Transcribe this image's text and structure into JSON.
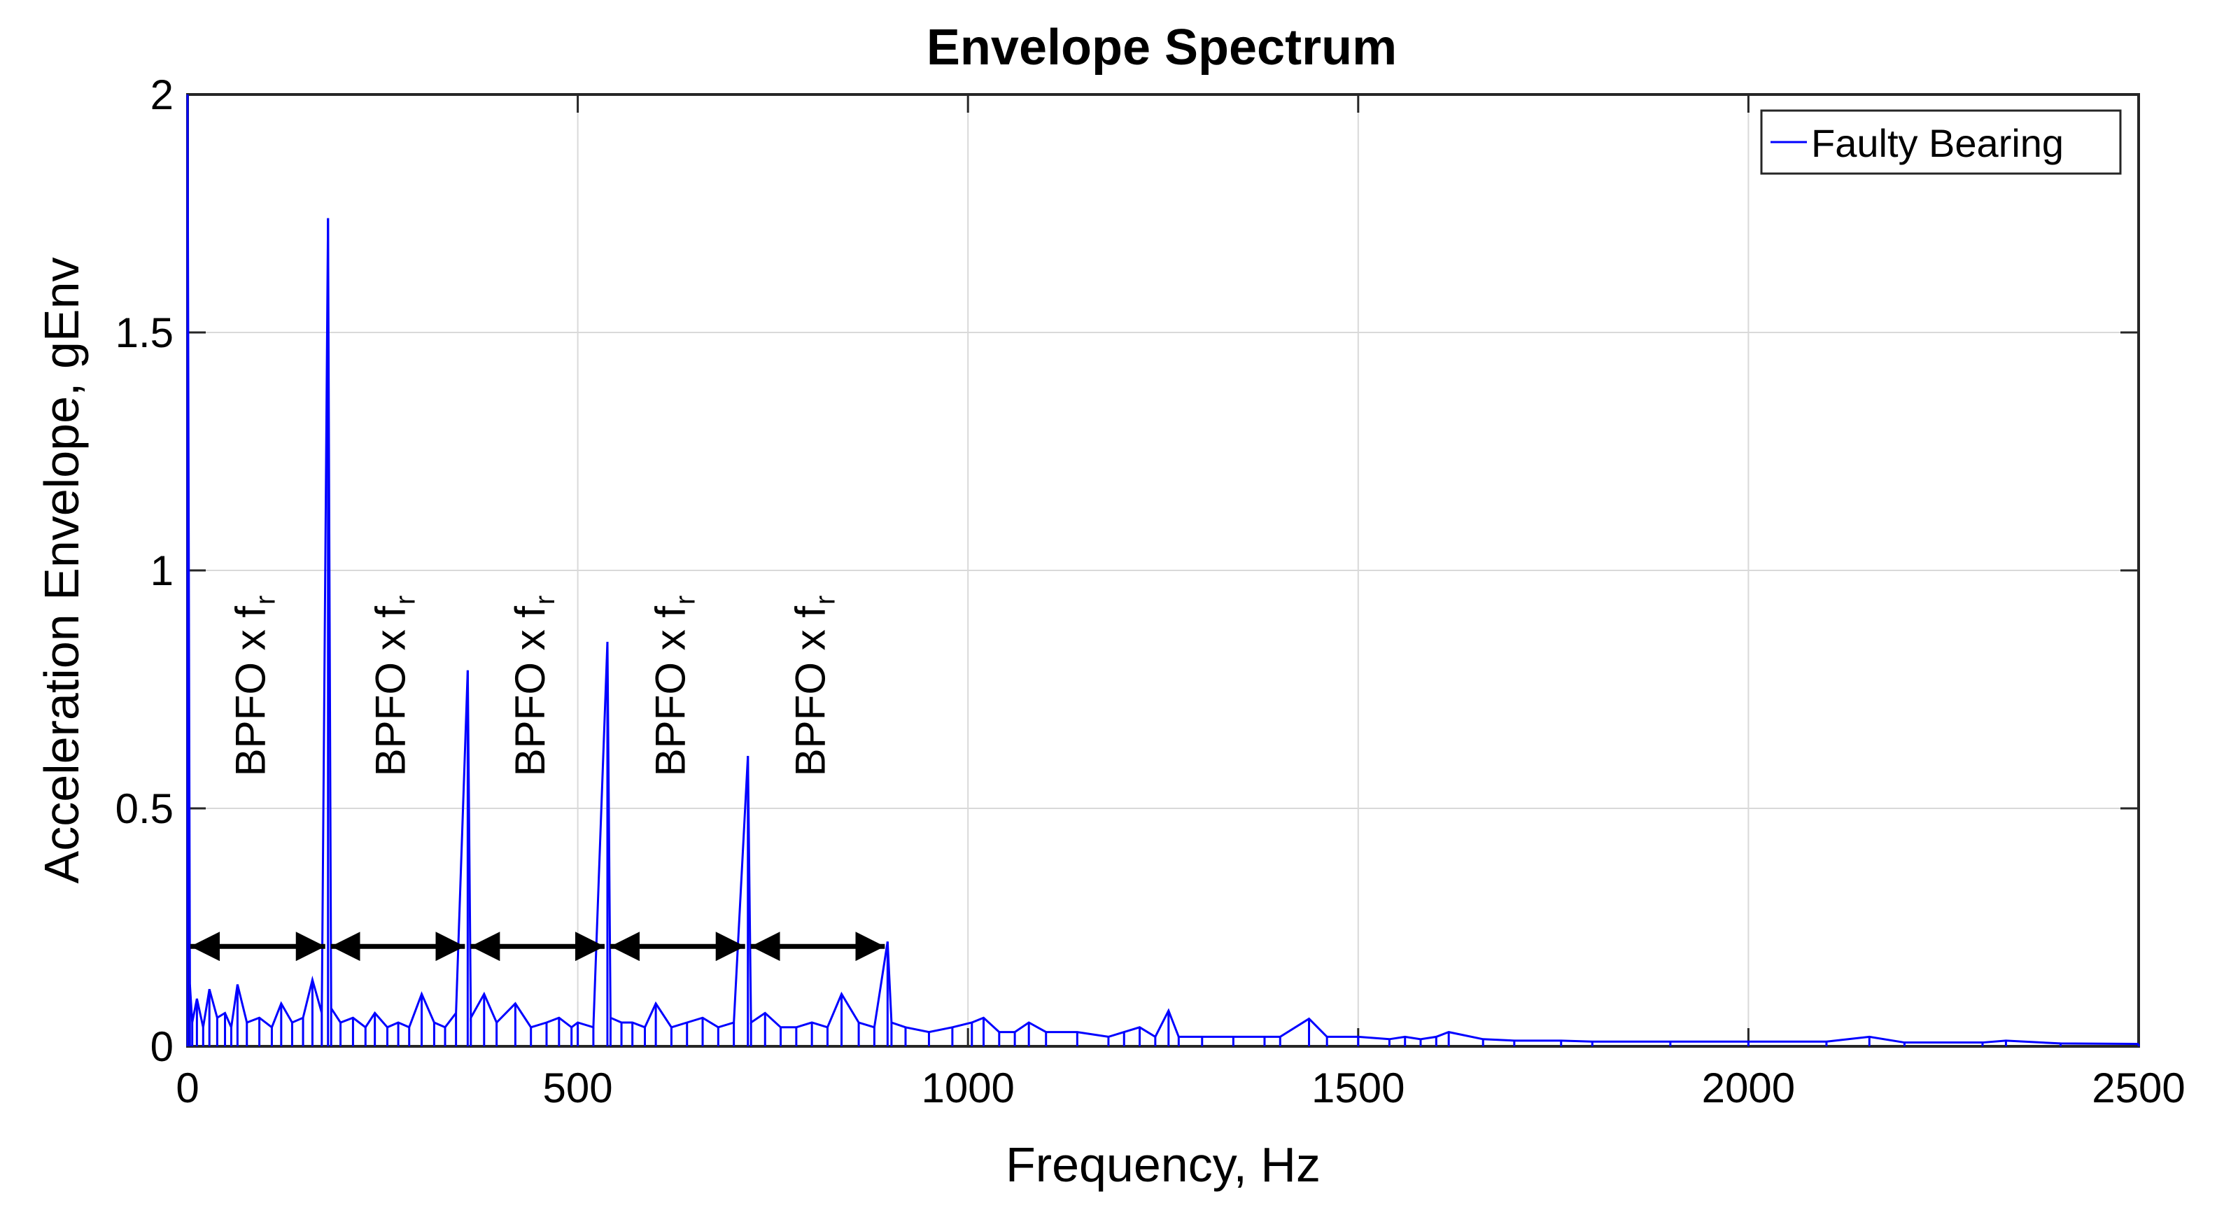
{
  "chart_data": {
    "type": "line",
    "title": "Envelope Spectrum",
    "xlabel": "Frequency, Hz",
    "ylabel": "Acceleration Envelope, gEnv",
    "xlim": [
      0,
      2500
    ],
    "ylim": [
      0,
      2
    ],
    "xticks": [
      0,
      500,
      1000,
      1500,
      2000,
      2500
    ],
    "yticks": [
      0,
      0.5,
      1,
      1.5,
      2
    ],
    "xtick_labels": [
      "0",
      "500",
      "1000",
      "1500",
      "2000",
      "2500"
    ],
    "ytick_labels": [
      "0",
      "0.5",
      "1",
      "1.5",
      "2"
    ],
    "grid": true,
    "legend": {
      "position": "top-right",
      "entries": [
        "Faulty Bearing"
      ]
    },
    "series": [
      {
        "name": "Faulty Bearing",
        "color": "#0000ff",
        "points": [
          [
            0,
            2.0
          ],
          [
            3,
            0.13
          ],
          [
            6,
            0.05
          ],
          [
            12,
            0.1
          ],
          [
            20,
            0.04
          ],
          [
            28,
            0.12
          ],
          [
            38,
            0.06
          ],
          [
            48,
            0.07
          ],
          [
            56,
            0.04
          ],
          [
            64,
            0.13
          ],
          [
            76,
            0.05
          ],
          [
            92,
            0.06
          ],
          [
            108,
            0.04
          ],
          [
            120,
            0.09
          ],
          [
            134,
            0.05
          ],
          [
            148,
            0.06
          ],
          [
            160,
            0.14
          ],
          [
            172,
            0.07
          ],
          [
            180,
            1.74
          ],
          [
            184,
            0.08
          ],
          [
            196,
            0.05
          ],
          [
            212,
            0.06
          ],
          [
            228,
            0.04
          ],
          [
            240,
            0.07
          ],
          [
            256,
            0.04
          ],
          [
            270,
            0.05
          ],
          [
            284,
            0.04
          ],
          [
            300,
            0.11
          ],
          [
            316,
            0.05
          ],
          [
            330,
            0.04
          ],
          [
            344,
            0.07
          ],
          [
            359,
            0.79
          ],
          [
            363,
            0.06
          ],
          [
            380,
            0.11
          ],
          [
            396,
            0.05
          ],
          [
            420,
            0.09
          ],
          [
            440,
            0.04
          ],
          [
            460,
            0.05
          ],
          [
            476,
            0.06
          ],
          [
            492,
            0.04
          ],
          [
            500,
            0.05
          ],
          [
            520,
            0.04
          ],
          [
            538,
            0.85
          ],
          [
            542,
            0.06
          ],
          [
            556,
            0.05
          ],
          [
            570,
            0.05
          ],
          [
            586,
            0.04
          ],
          [
            600,
            0.09
          ],
          [
            620,
            0.04
          ],
          [
            640,
            0.05
          ],
          [
            660,
            0.06
          ],
          [
            680,
            0.04
          ],
          [
            700,
            0.05
          ],
          [
            718,
            0.61
          ],
          [
            722,
            0.05
          ],
          [
            740,
            0.07
          ],
          [
            760,
            0.04
          ],
          [
            780,
            0.04
          ],
          [
            800,
            0.05
          ],
          [
            820,
            0.04
          ],
          [
            838,
            0.11
          ],
          [
            860,
            0.05
          ],
          [
            880,
            0.04
          ],
          [
            897,
            0.22
          ],
          [
            902,
            0.05
          ],
          [
            920,
            0.04
          ],
          [
            950,
            0.03
          ],
          [
            980,
            0.04
          ],
          [
            1005,
            0.05
          ],
          [
            1020,
            0.06
          ],
          [
            1040,
            0.03
          ],
          [
            1060,
            0.03
          ],
          [
            1078,
            0.05
          ],
          [
            1100,
            0.03
          ],
          [
            1140,
            0.03
          ],
          [
            1180,
            0.02
          ],
          [
            1200,
            0.03
          ],
          [
            1220,
            0.04
          ],
          [
            1240,
            0.02
          ],
          [
            1257,
            0.075
          ],
          [
            1270,
            0.02
          ],
          [
            1300,
            0.02
          ],
          [
            1340,
            0.02
          ],
          [
            1380,
            0.02
          ],
          [
            1400,
            0.02
          ],
          [
            1437,
            0.058
          ],
          [
            1460,
            0.02
          ],
          [
            1500,
            0.02
          ],
          [
            1540,
            0.015
          ],
          [
            1560,
            0.02
          ],
          [
            1580,
            0.015
          ],
          [
            1600,
            0.02
          ],
          [
            1616,
            0.03
          ],
          [
            1660,
            0.015
          ],
          [
            1700,
            0.012
          ],
          [
            1760,
            0.012
          ],
          [
            1800,
            0.01
          ],
          [
            1900,
            0.01
          ],
          [
            2000,
            0.01
          ],
          [
            2100,
            0.01
          ],
          [
            2155,
            0.02
          ],
          [
            2200,
            0.008
          ],
          [
            2300,
            0.008
          ],
          [
            2330,
            0.012
          ],
          [
            2400,
            0.006
          ],
          [
            2500,
            0.005
          ]
        ]
      }
    ],
    "annotations": {
      "arrow_y": 0.21,
      "items": [
        {
          "from": 0,
          "to": 180,
          "text": "BPFO x f",
          "subscript": "r"
        },
        {
          "from": 180,
          "to": 359,
          "text": "BPFO x f",
          "subscript": "r"
        },
        {
          "from": 359,
          "to": 538,
          "text": "BPFO x f",
          "subscript": "r"
        },
        {
          "from": 538,
          "to": 718,
          "text": "BPFO x f",
          "subscript": "r"
        },
        {
          "from": 718,
          "to": 897,
          "text": "BPFO x f",
          "subscript": "r"
        }
      ]
    }
  }
}
